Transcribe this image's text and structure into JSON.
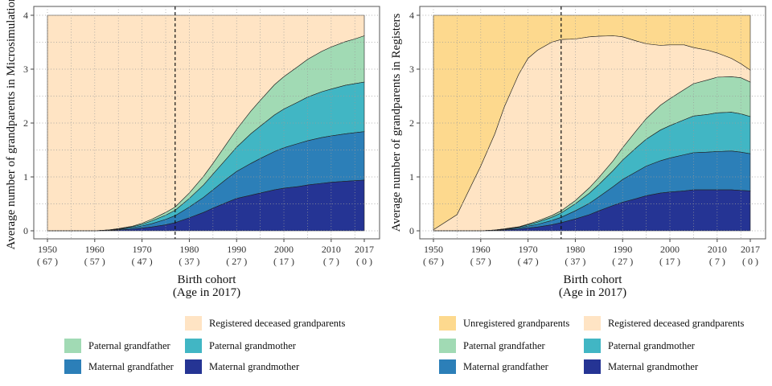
{
  "chart_data": [
    {
      "type": "area",
      "ylabel": "Average number of grandparents in Microsimulation",
      "xlabel": "Birth cohort",
      "xlabel_sub": "(Age in 2017)",
      "xlim": [
        1950,
        2017
      ],
      "ylim": [
        0,
        4
      ],
      "yticks": [
        0,
        1,
        2,
        3,
        4
      ],
      "xticks": [
        {
          "year": 1950,
          "label": "1950",
          "age": "( 67 )"
        },
        {
          "year": 1960,
          "label": "1960",
          "age": "( 57 )"
        },
        {
          "year": 1970,
          "label": "1970",
          "age": "( 47 )"
        },
        {
          "year": 1980,
          "label": "1980",
          "age": "( 37 )"
        },
        {
          "year": 1990,
          "label": "1990",
          "age": "( 27 )"
        },
        {
          "year": 2000,
          "label": "2000",
          "age": "( 17 )"
        },
        {
          "year": 2010,
          "label": "2010",
          "age": "( 7 )"
        },
        {
          "year": 2017,
          "label": "2017",
          "age": "( 0 )"
        }
      ],
      "reference_line_x": 1977,
      "grid": true,
      "x": [
        1950,
        1955,
        1960,
        1963,
        1965,
        1968,
        1970,
        1972,
        1975,
        1977,
        1980,
        1983,
        1985,
        1988,
        1990,
        1993,
        1995,
        1998,
        2000,
        2003,
        2005,
        2008,
        2010,
        2013,
        2015,
        2017
      ],
      "series": [
        {
          "name": "Maternal grandmother",
          "color": "#253494",
          "values": [
            0,
            0,
            0,
            0.005,
            0.015,
            0.03,
            0.05,
            0.07,
            0.11,
            0.15,
            0.24,
            0.34,
            0.42,
            0.53,
            0.6,
            0.66,
            0.7,
            0.76,
            0.79,
            0.82,
            0.85,
            0.88,
            0.9,
            0.92,
            0.93,
            0.94
          ]
        },
        {
          "name": "Maternal grandfather",
          "color": "#2c7fb8",
          "values": [
            0,
            0,
            0,
            0.005,
            0.01,
            0.025,
            0.04,
            0.06,
            0.1,
            0.13,
            0.2,
            0.28,
            0.34,
            0.44,
            0.5,
            0.59,
            0.64,
            0.71,
            0.75,
            0.8,
            0.82,
            0.85,
            0.86,
            0.88,
            0.89,
            0.9
          ]
        },
        {
          "name": "Paternal grandmother",
          "color": "#41b6c4",
          "values": [
            0,
            0,
            0,
            0.005,
            0.01,
            0.02,
            0.03,
            0.05,
            0.08,
            0.1,
            0.16,
            0.23,
            0.29,
            0.38,
            0.45,
            0.55,
            0.6,
            0.68,
            0.72,
            0.77,
            0.81,
            0.85,
            0.87,
            0.9,
            0.91,
            0.92
          ]
        },
        {
          "name": "Paternal grandfather",
          "color": "#a1dab4",
          "values": [
            0,
            0,
            0,
            0.002,
            0.005,
            0.01,
            0.02,
            0.03,
            0.05,
            0.06,
            0.1,
            0.16,
            0.2,
            0.28,
            0.33,
            0.42,
            0.48,
            0.56,
            0.6,
            0.66,
            0.7,
            0.75,
            0.78,
            0.81,
            0.83,
            0.86
          ]
        },
        {
          "name": "Registered deceased grandparents",
          "color": "#ffe4c4",
          "fill_to": 4
        }
      ],
      "legend": {
        "placement": "bottom",
        "rows": [
          [
            "",
            "Registered deceased grandparents"
          ],
          [
            "Paternal grandfather",
            "Paternal grandmother"
          ],
          [
            "Maternal grandfather",
            "Maternal grandmother"
          ]
        ]
      }
    },
    {
      "type": "area",
      "ylabel": "Average number of grandparents in Registers",
      "xlabel": "Birth cohort",
      "xlabel_sub": "(Age in 2017)",
      "xlim": [
        1950,
        2017
      ],
      "ylim": [
        0,
        4
      ],
      "yticks": [
        0,
        1,
        2,
        3,
        4
      ],
      "xticks": [
        {
          "year": 1950,
          "label": "1950",
          "age": "( 67 )"
        },
        {
          "year": 1960,
          "label": "1960",
          "age": "( 57 )"
        },
        {
          "year": 1970,
          "label": "1970",
          "age": "( 47 )"
        },
        {
          "year": 1980,
          "label": "1980",
          "age": "( 37 )"
        },
        {
          "year": 1990,
          "label": "1990",
          "age": "( 27 )"
        },
        {
          "year": 2000,
          "label": "2000",
          "age": "( 17 )"
        },
        {
          "year": 2010,
          "label": "2010",
          "age": "( 7 )"
        },
        {
          "year": 2017,
          "label": "2017",
          "age": "( 0 )"
        }
      ],
      "reference_line_x": 1977,
      "grid": true,
      "x": [
        1950,
        1955,
        1960,
        1963,
        1965,
        1968,
        1970,
        1972,
        1975,
        1977,
        1980,
        1983,
        1985,
        1988,
        1990,
        1993,
        1995,
        1998,
        2000,
        2003,
        2005,
        2008,
        2010,
        2013,
        2015,
        2017
      ],
      "series": [
        {
          "name": "Maternal grandmother",
          "color": "#253494",
          "values": [
            0,
            0,
            0,
            0.005,
            0.015,
            0.03,
            0.05,
            0.07,
            0.11,
            0.15,
            0.22,
            0.3,
            0.37,
            0.47,
            0.53,
            0.6,
            0.65,
            0.7,
            0.72,
            0.74,
            0.76,
            0.76,
            0.76,
            0.76,
            0.75,
            0.74
          ]
        },
        {
          "name": "Maternal grandfather",
          "color": "#2c7fb8",
          "values": [
            0,
            0,
            0,
            0.005,
            0.01,
            0.02,
            0.035,
            0.05,
            0.08,
            0.1,
            0.15,
            0.21,
            0.26,
            0.35,
            0.42,
            0.5,
            0.55,
            0.6,
            0.63,
            0.67,
            0.69,
            0.7,
            0.71,
            0.72,
            0.71,
            0.69
          ]
        },
        {
          "name": "Paternal grandmother",
          "color": "#41b6c4",
          "values": [
            0,
            0,
            0,
            0.003,
            0.008,
            0.015,
            0.025,
            0.04,
            0.06,
            0.08,
            0.13,
            0.19,
            0.23,
            0.3,
            0.36,
            0.45,
            0.5,
            0.57,
            0.6,
            0.65,
            0.68,
            0.7,
            0.72,
            0.72,
            0.71,
            0.69
          ]
        },
        {
          "name": "Paternal grandfather",
          "color": "#a1dab4",
          "values": [
            0,
            0,
            0,
            0.002,
            0.004,
            0.008,
            0.015,
            0.02,
            0.03,
            0.04,
            0.06,
            0.1,
            0.13,
            0.18,
            0.23,
            0.32,
            0.38,
            0.46,
            0.5,
            0.56,
            0.6,
            0.64,
            0.66,
            0.66,
            0.67,
            0.64
          ]
        },
        {
          "name": "Registered deceased grandparents",
          "color": "#ffe4c4",
          "top_values": [
            0.02,
            0.3,
            1.2,
            1.8,
            2.3,
            2.9,
            3.2,
            3.35,
            3.5,
            3.55,
            3.56,
            3.6,
            3.61,
            3.62,
            3.6,
            3.52,
            3.47,
            3.44,
            3.45,
            3.45,
            3.4,
            3.35,
            3.3,
            3.2,
            3.1,
            2.98
          ]
        },
        {
          "name": "Unregistered grandparents",
          "color": "#fdd98e",
          "fill_to": 4
        }
      ],
      "legend": {
        "placement": "bottom",
        "rows": [
          [
            "Unregistered grandparents",
            "Registered deceased grandparents"
          ],
          [
            "Paternal grandfather",
            "Paternal grandmother"
          ],
          [
            "Maternal grandfather",
            "Maternal grandmother"
          ]
        ]
      }
    }
  ]
}
